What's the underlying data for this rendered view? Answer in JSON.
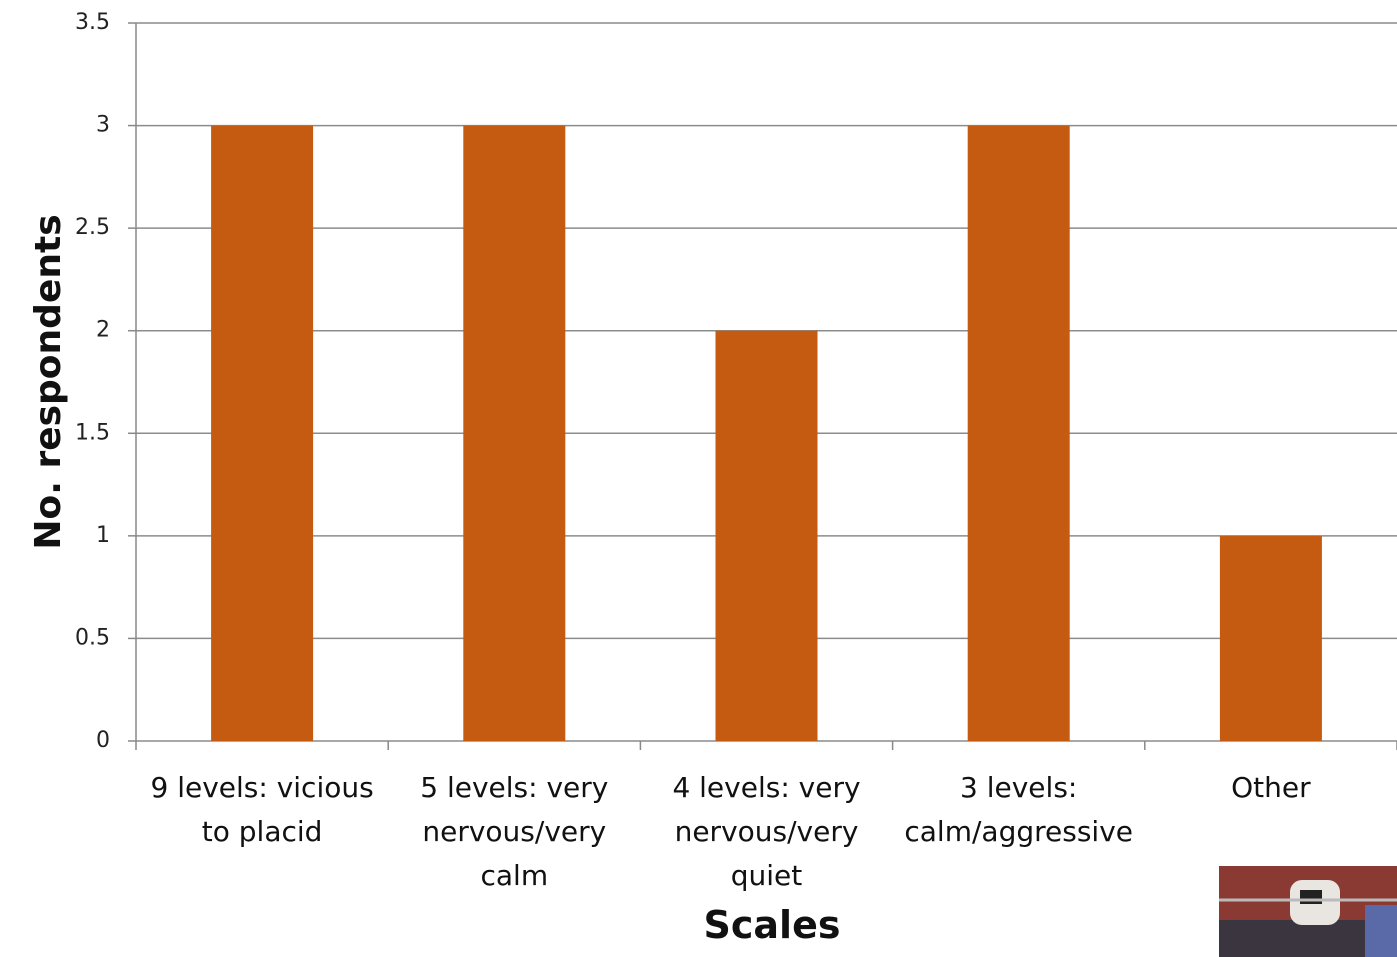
{
  "chart_data": {
    "type": "bar",
    "categories": [
      "9 levels: vicious to placid",
      "5 levels: very nervous/very calm",
      "4 levels: very nervous/very quiet",
      "3 levels: calm/aggressive",
      "Other"
    ],
    "values": [
      3,
      3,
      2,
      3,
      1
    ],
    "color": "#c55a11",
    "x_label": "Scales",
    "y_label": "No. respondents",
    "ylim": [
      0,
      3.5
    ],
    "yticks": [
      0,
      0.5,
      1,
      1.5,
      2,
      2.5,
      3,
      3.5
    ],
    "grid": true
  }
}
